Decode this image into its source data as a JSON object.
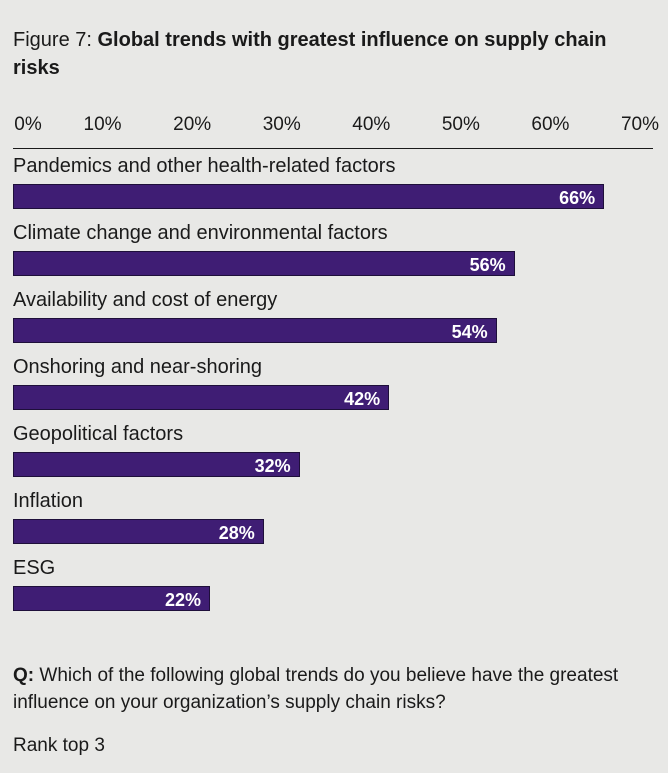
{
  "header": {
    "figure_prefix": "Figure 7:",
    "title": "Global trends with greatest influence on supply chain risks"
  },
  "chart_data": {
    "type": "bar",
    "orientation": "horizontal",
    "title": "Global trends with greatest influence on supply chain risks",
    "xlim": [
      0,
      70
    ],
    "x_ticks": [
      "0%",
      "10%",
      "20%",
      "30%",
      "40%",
      "50%",
      "60%",
      "70%"
    ],
    "grid": false,
    "categories": [
      "Pandemics and other health-related factors",
      "Climate change and environmental factors",
      "Availability and cost of energy",
      "Onshoring and near-shoring",
      "Geopolitical factors",
      "Inflation",
      "ESG"
    ],
    "values": [
      66,
      56,
      54,
      42,
      32,
      28,
      22
    ],
    "value_labels": [
      "66%",
      "56%",
      "54%",
      "42%",
      "32%",
      "28%",
      "22%"
    ],
    "bar_color": "#3f1d74"
  },
  "footer": {
    "question_prefix": "Q:",
    "question_text": "Which of the following global trends do you believe have the greatest influence on your organization’s supply chain risks?",
    "note": "Rank top 3"
  }
}
